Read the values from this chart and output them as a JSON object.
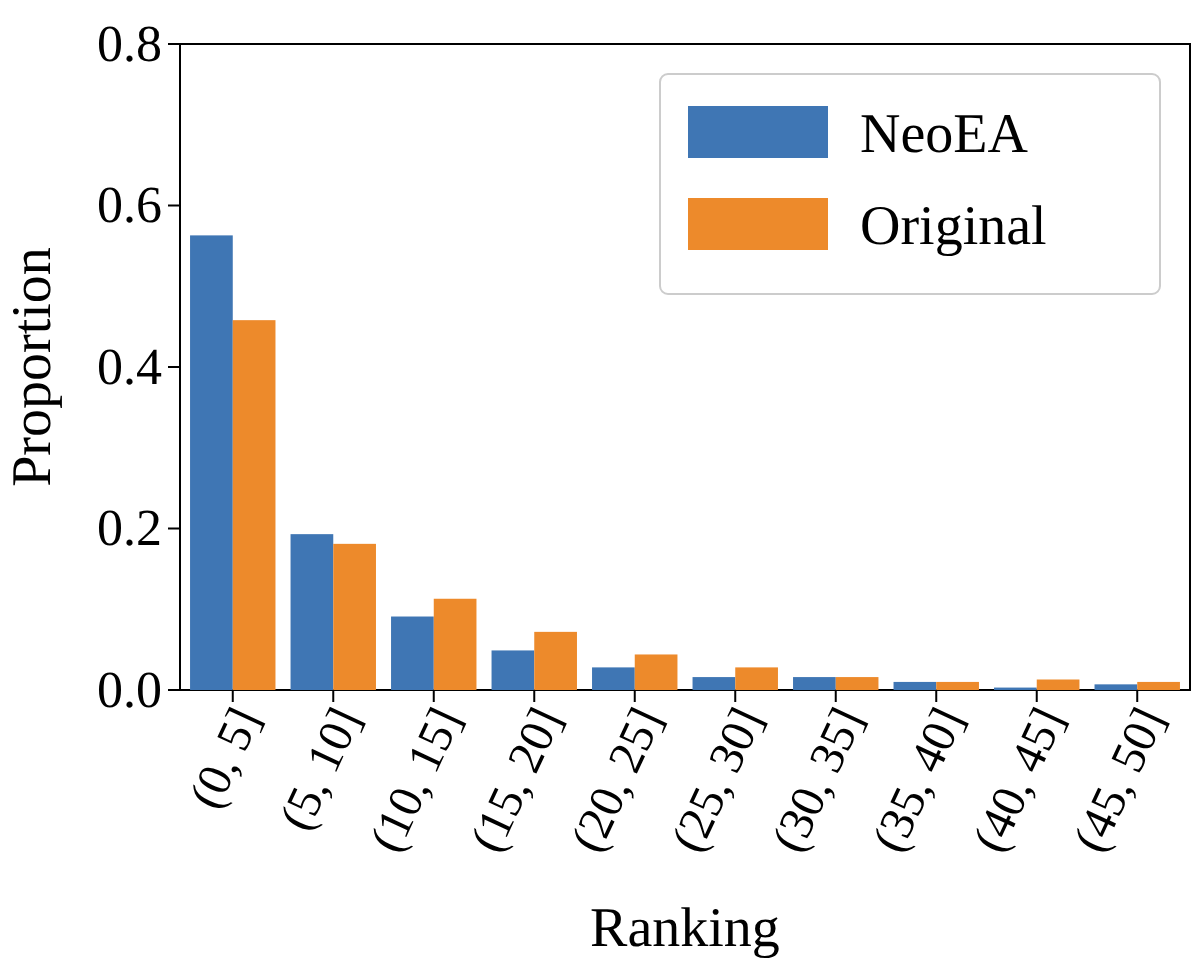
{
  "chart_data": {
    "type": "bar",
    "xlabel": "Ranking",
    "ylabel": "Proportion",
    "categories": [
      "(0, 5]",
      "(5, 10]",
      "(10, 15]",
      "(15, 20]",
      "(20, 25]",
      "(25, 30]",
      "(30, 35]",
      "(35, 40]",
      "(40, 45]",
      "(45, 50]"
    ],
    "series": [
      {
        "name": "NeoEA",
        "color": "#3f76b4",
        "values": [
          0.563,
          0.193,
          0.091,
          0.049,
          0.028,
          0.016,
          0.016,
          0.01,
          0.003,
          0.007
        ]
      },
      {
        "name": "Original",
        "color": "#ed8a2b",
        "values": [
          0.458,
          0.181,
          0.113,
          0.072,
          0.044,
          0.028,
          0.016,
          0.01,
          0.013,
          0.01
        ]
      }
    ],
    "ylim": [
      0,
      0.8
    ],
    "yticks": [
      {
        "value": 0,
        "label": "0.0"
      },
      {
        "value": 0.2,
        "label": "0.2"
      },
      {
        "value": 0.4,
        "label": "0.4"
      },
      {
        "value": 0.6,
        "label": "0.6"
      },
      {
        "value": 0.8,
        "label": "0.8"
      }
    ],
    "legend": "top right",
    "grid": false
  }
}
